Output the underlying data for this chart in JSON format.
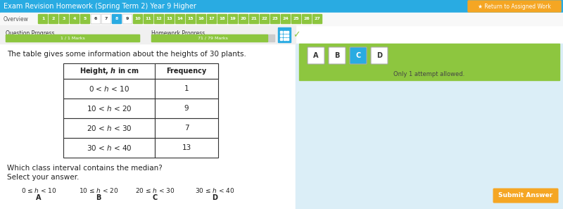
{
  "title_bar_text": "Exam Revision Homework (Spring Term 2) Year 9 Higher",
  "title_bar_bg": "#29abe2",
  "title_bar_text_color": "#ffffff",
  "nav_bg": "#ffffff",
  "nav_current": "8",
  "nav_current_bg": "#29abe2",
  "progress_bg": "#f0f0f0",
  "question_progress_label": "Question Progress",
  "homework_progress_label": "Homework Progress",
  "question_marks": "1 / 1 Marks",
  "homework_marks": "71 / 79 Marks",
  "progress_bar_color": "#8dc63f",
  "left_panel_bg": "#ffffff",
  "right_panel_bg": "#dbeef7",
  "answer_area_bg": "#8dc63f",
  "intro_text": "The table gives some information about the heights of 30 plants.",
  "table_header_col1": "Height, h in cm",
  "table_header_col2": "Frequency",
  "table_rows": [
    [
      "0 < h < 10",
      "1"
    ],
    [
      "10 < h < 20",
      "9"
    ],
    [
      "20 < h < 30",
      "7"
    ],
    [
      "30 < h < 40",
      "13"
    ]
  ],
  "question_text": "Which class interval contains the median?",
  "select_text": "Select your answer.",
  "answer_options_top": [
    "0 ≤ h < 10",
    "10 ≤ h < 20",
    "20 ≤ h < 30",
    "30 ≤ h < 40"
  ],
  "answer_labels": [
    "A",
    "B",
    "C",
    "D"
  ],
  "answer_btn_colors": [
    "#ffffff",
    "#ffffff",
    "#29abe2",
    "#ffffff"
  ],
  "answer_btn_text_colors": [
    "#333333",
    "#333333",
    "#ffffff",
    "#333333"
  ],
  "only_attempt_text": "Only 1 attempt allowed.",
  "submit_btn_text": "Submit Answer",
  "submit_btn_bg": "#f5a623",
  "submit_btn_text_color": "#ffffff",
  "return_btn_text": "Return to Assigned Work",
  "return_btn_bg": "#f5a623",
  "return_btn_text_color": "#ffffff"
}
